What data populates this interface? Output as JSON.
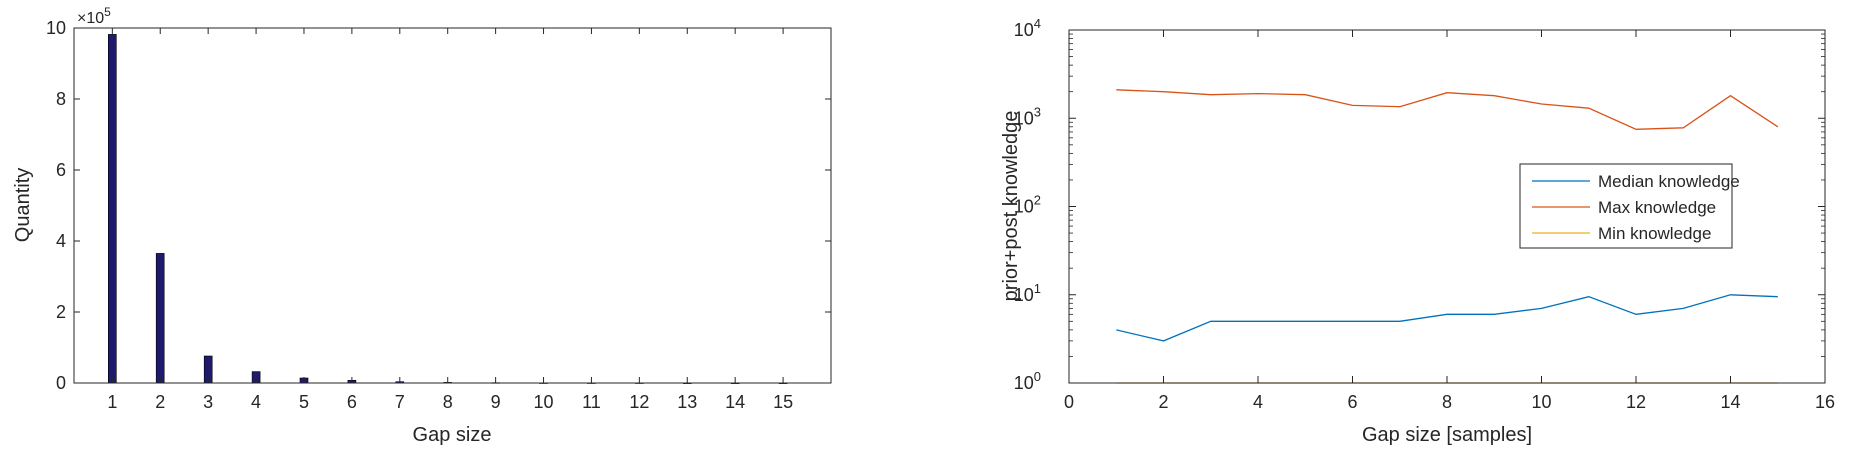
{
  "chart_data": [
    {
      "type": "bar",
      "xlabel": "Gap size",
      "ylabel": "Quantity",
      "exponent_base": "×10",
      "exponent_power": "5",
      "categories": [
        "1",
        "2",
        "3",
        "4",
        "5",
        "6",
        "7",
        "8",
        "9",
        "10",
        "11",
        "12",
        "13",
        "14",
        "15"
      ],
      "values": [
        982000,
        365000,
        76000,
        32000,
        14000,
        7500,
        3800,
        1600,
        800,
        400,
        250,
        150,
        80,
        50,
        30
      ],
      "ylim": [
        0,
        1000000
      ],
      "y_ticks": [
        "0",
        "2",
        "4",
        "6",
        "8",
        "10"
      ],
      "xlim": [
        0.2,
        16
      ],
      "grid": false,
      "bar_color": "#1f1a6e"
    },
    {
      "type": "line",
      "xlabel": "Gap size [samples]",
      "ylabel": "prior+post knowledge",
      "x_scale": "linear",
      "y_scale": "log",
      "xlim": [
        0,
        16
      ],
      "ylim": [
        1,
        10000
      ],
      "x_ticks": [
        "0",
        "2",
        "4",
        "6",
        "8",
        "10",
        "12",
        "14",
        "16"
      ],
      "y_ticks": [
        "10",
        "10",
        "10",
        "10",
        "10"
      ],
      "y_tick_powers": [
        "0",
        "1",
        "2",
        "3",
        "4"
      ],
      "grid": false,
      "legend_position": "center-right",
      "x": [
        1,
        2,
        3,
        4,
        5,
        6,
        7,
        8,
        9,
        10,
        11,
        12,
        13,
        14,
        15
      ],
      "series": [
        {
          "name": "Median knowledge",
          "color": "#0072bd",
          "values": [
            4,
            3,
            5,
            5,
            5,
            5,
            5,
            6,
            6,
            7,
            9.5,
            6,
            7,
            10,
            9.5
          ]
        },
        {
          "name": "Max knowledge",
          "color": "#d95319",
          "values": [
            2100,
            2000,
            1850,
            1900,
            1850,
            1400,
            1350,
            1950,
            1800,
            1450,
            1300,
            750,
            780,
            1800,
            800
          ]
        },
        {
          "name": "Min knowledge",
          "color": "#edb120",
          "values": [
            1,
            1,
            1,
            1,
            1,
            1,
            1,
            1,
            1,
            1,
            1,
            1,
            1,
            1,
            1
          ]
        }
      ]
    }
  ]
}
